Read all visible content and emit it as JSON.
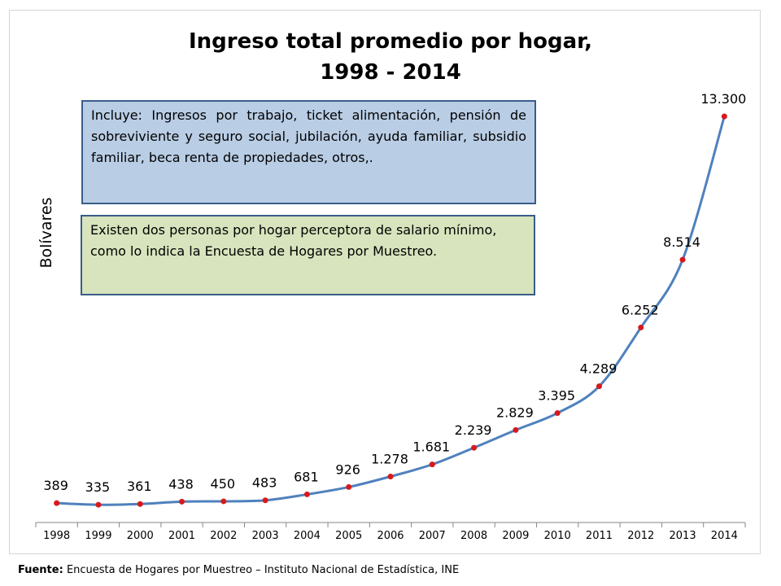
{
  "title_line1": "Ingreso total promedio por hogar,",
  "title_line2": "1998 - 2014",
  "note_box_1": "Incluye: Ingresos por trabajo, ticket alimentación, pensión de sobreviviente y seguro social, jubilación, ayuda familiar, subsidio familiar, beca renta de propiedades, otros,.",
  "note_box_2": "Existen dos personas por hogar perceptora de salario mínimo, como lo indica la Encuesta de Hogares por Muestreo.",
  "source_label": "Fuente:",
  "source_text": "Encuesta de Hogares por Muestreo – Instituto Nacional de Estadística, INE",
  "colors": {
    "line": "#4f81bd",
    "marker": "#d7191c",
    "note1_bg": "#b9cde5",
    "note2_bg": "#d7e4bd",
    "note_border": "#385d8a"
  },
  "chart_data": {
    "type": "line",
    "title": "Ingreso total promedio por hogar, 1998 - 2014",
    "xlabel": "",
    "ylabel": "Bolívares",
    "categories": [
      "1998",
      "1999",
      "2000",
      "2001",
      "2002",
      "2003",
      "2004",
      "2005",
      "2006",
      "2007",
      "2008",
      "2009",
      "2010",
      "2011",
      "2012",
      "2013",
      "2014"
    ],
    "values": [
      389,
      335,
      361,
      438,
      450,
      483,
      681,
      926,
      1278,
      1681,
      2239,
      2829,
      3395,
      4289,
      6252,
      8514,
      13300
    ],
    "data_labels": [
      "389",
      "335",
      "361",
      "438",
      "450",
      "483",
      "681",
      "926",
      "1.278",
      "1.681",
      "2.239",
      "2.829",
      "3.395",
      "4.289",
      "6.252",
      "8.514",
      "13.300"
    ],
    "ylim": [
      0,
      13300
    ],
    "grid": false,
    "smooth": true,
    "legend": "none"
  }
}
